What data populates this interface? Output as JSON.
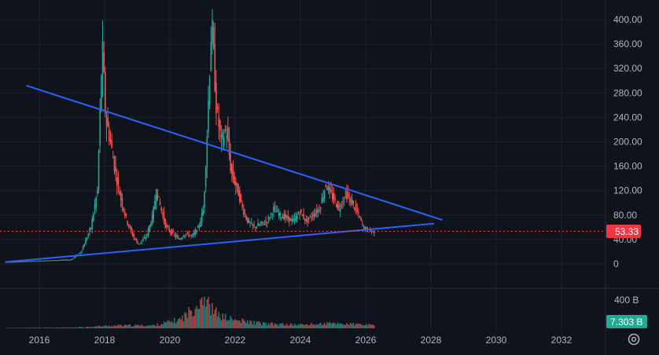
{
  "chart_data": {
    "type": "candlestick",
    "x_ticks": [
      "2016",
      "2018",
      "2020",
      "2022",
      "2024",
      "2026",
      "2028",
      "2030",
      "2032"
    ],
    "y_ticks": [
      "0",
      "40.00",
      "80.00",
      "120.00",
      "160.00",
      "200.00",
      "240.00",
      "280.00",
      "320.00",
      "360.00",
      "400.00"
    ],
    "volume_tick": "400 B",
    "current_price": "53.33",
    "current_volume": "7.303 B",
    "colors": {
      "up": "#26a69a",
      "down": "#ef5350",
      "trendline": "#2962ff",
      "background": "#0f131c",
      "grid": "#1c2230",
      "price_badge": "#f23645",
      "volume_badge": "#22ab94"
    },
    "price_path": [
      [
        2015.0,
        3
      ],
      [
        2015.5,
        4
      ],
      [
        2016.0,
        5
      ],
      [
        2016.5,
        6
      ],
      [
        2017.0,
        7
      ],
      [
        2017.3,
        20
      ],
      [
        2017.6,
        60
      ],
      [
        2017.8,
        120
      ],
      [
        2017.95,
        360
      ],
      [
        2018.05,
        240
      ],
      [
        2018.2,
        200
      ],
      [
        2018.35,
        150
      ],
      [
        2018.5,
        110
      ],
      [
        2018.7,
        70
      ],
      [
        2018.9,
        45
      ],
      [
        2019.05,
        32
      ],
      [
        2019.3,
        45
      ],
      [
        2019.5,
        80
      ],
      [
        2019.6,
        120
      ],
      [
        2019.75,
        90
      ],
      [
        2019.9,
        60
      ],
      [
        2020.1,
        50
      ],
      [
        2020.3,
        40
      ],
      [
        2020.5,
        50
      ],
      [
        2020.7,
        45
      ],
      [
        2020.9,
        60
      ],
      [
        2021.05,
        90
      ],
      [
        2021.15,
        200
      ],
      [
        2021.3,
        400
      ],
      [
        2021.45,
        250
      ],
      [
        2021.6,
        200
      ],
      [
        2021.75,
        220
      ],
      [
        2021.9,
        150
      ],
      [
        2022.1,
        120
      ],
      [
        2022.25,
        90
      ],
      [
        2022.4,
        70
      ],
      [
        2022.6,
        60
      ],
      [
        2022.8,
        65
      ],
      [
        2023.0,
        70
      ],
      [
        2023.2,
        90
      ],
      [
        2023.4,
        80
      ],
      [
        2023.6,
        75
      ],
      [
        2023.8,
        70
      ],
      [
        2024.0,
        85
      ],
      [
        2024.2,
        70
      ],
      [
        2024.4,
        80
      ],
      [
        2024.6,
        90
      ],
      [
        2024.8,
        130
      ],
      [
        2025.0,
        110
      ],
      [
        2025.2,
        90
      ],
      [
        2025.4,
        115
      ],
      [
        2025.6,
        100
      ],
      [
        2025.8,
        80
      ],
      [
        2025.95,
        60
      ],
      [
        2026.1,
        55
      ],
      [
        2026.25,
        53
      ]
    ],
    "trendlines": [
      {
        "from": [
          2015.6,
          292
        ],
        "to": [
          2028.35,
          72
        ]
      },
      {
        "from": [
          2014.95,
          3
        ],
        "to": [
          2028.1,
          66
        ]
      }
    ],
    "volume_path": [
      [
        2015.0,
        1
      ],
      [
        2017.0,
        2
      ],
      [
        2017.9,
        6
      ],
      [
        2018.5,
        8
      ],
      [
        2019.5,
        8
      ],
      [
        2020.3,
        25
      ],
      [
        2020.7,
        55
      ],
      [
        2020.9,
        80
      ],
      [
        2021.0,
        95
      ],
      [
        2021.2,
        60
      ],
      [
        2021.5,
        35
      ],
      [
        2022.0,
        22
      ],
      [
        2023.0,
        12
      ],
      [
        2024.0,
        10
      ],
      [
        2025.0,
        14
      ],
      [
        2026.0,
        10
      ],
      [
        2026.25,
        7.3
      ]
    ],
    "volume_max": 100
  }
}
